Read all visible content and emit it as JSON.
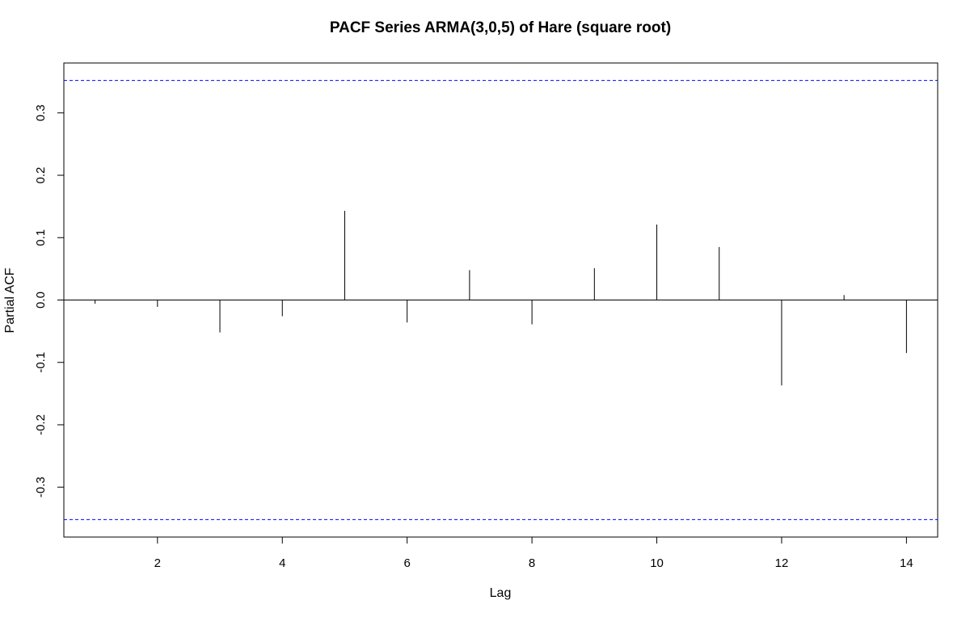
{
  "chart_data": {
    "type": "bar",
    "title": "PACF Series ARMA(3,0,5) of Hare (square root)",
    "xlabel": "Lag",
    "ylabel": "Partial ACF",
    "x": [
      1,
      2,
      3,
      4,
      5,
      6,
      7,
      8,
      9,
      10,
      11,
      12,
      13,
      14
    ],
    "values": [
      -0.006,
      -0.011,
      -0.052,
      -0.026,
      0.143,
      -0.036,
      0.048,
      -0.039,
      0.051,
      0.121,
      0.085,
      -0.137,
      0.008,
      -0.085
    ],
    "xlim": [
      0.5,
      14.5
    ],
    "ylim": [
      -0.38,
      0.38
    ],
    "xticks": [
      2,
      4,
      6,
      8,
      10,
      12,
      14
    ],
    "xtick_labels": [
      "2",
      "4",
      "6",
      "8",
      "10",
      "12",
      "14"
    ],
    "yticks": [
      -0.3,
      -0.2,
      -0.1,
      0.0,
      0.1,
      0.2,
      0.3
    ],
    "ytick_labels": [
      "-0.3",
      "-0.2",
      "-0.1",
      "0.0",
      "0.1",
      "0.2",
      "0.3"
    ],
    "confidence_bound": 0.352,
    "grid": false,
    "colors": {
      "spike": "#000000",
      "confidence_line": "#0000ff",
      "zero_line": "#000000",
      "frame": "#000000"
    }
  }
}
